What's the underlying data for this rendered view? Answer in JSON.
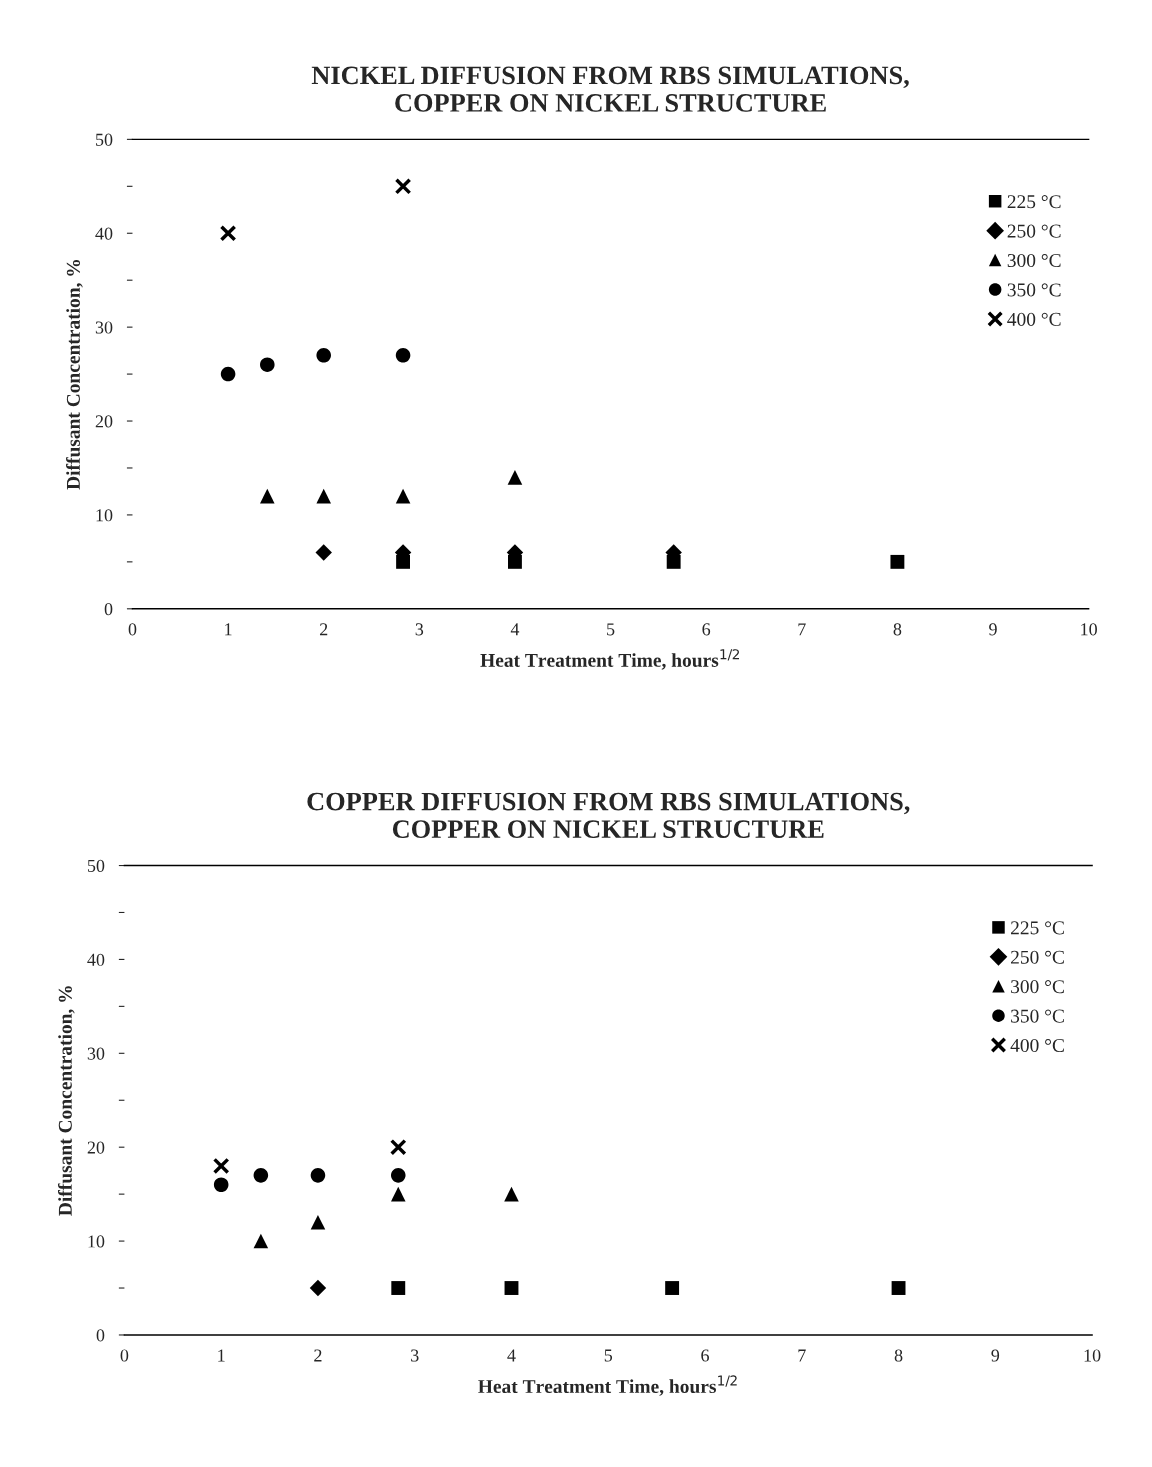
{
  "chart_data": [
    {
      "type": "scatter",
      "title": "NICKEL DIFFUSION FROM RBS SIMULATIONS,\nCOPPER ON NICKEL STRUCTURE",
      "xlabel": "Heat Treatment Time, hours$^{1/2}$",
      "ylabel": "Diffusant Concentration, %",
      "xlim": [
        0,
        10
      ],
      "xticks": [
        0,
        1,
        2,
        3,
        4,
        5,
        6,
        7,
        8,
        9,
        10
      ],
      "ylim": [
        0,
        50
      ],
      "yticks": [
        0,
        {
          "value": 5,
          "label": null
        },
        10,
        {
          "value": 15,
          "label": null
        },
        20,
        {
          "value": 25,
          "label": null
        },
        30,
        {
          "value": 35,
          "label": null
        },
        40,
        {
          "value": 45,
          "label": null
        },
        50
      ],
      "grid": false,
      "legend": "top right",
      "series": [
        {
          "name": "225 °C",
          "color": "#000000",
          "marker": "square",
          "x": [
            2.83,
            4,
            5.66,
            8
          ],
          "values": [
            5,
            5,
            5,
            5
          ]
        },
        {
          "name": "250 °C",
          "color": "#000000",
          "marker": "diamond",
          "x": [
            2,
            2.83,
            4,
            5.66
          ],
          "values": [
            6,
            6,
            6,
            6
          ]
        },
        {
          "name": "300 °C",
          "color": "#000000",
          "marker": "triangle",
          "x": [
            1.41,
            2,
            2.83,
            4
          ],
          "values": [
            12,
            12,
            12,
            14
          ]
        },
        {
          "name": "350 °C",
          "color": "#000000",
          "marker": "circle",
          "x": [
            1,
            1.41,
            2,
            2.83
          ],
          "values": [
            25,
            26,
            27,
            27
          ]
        },
        {
          "name": "400 °C",
          "color": "#000000",
          "marker": "cross",
          "x": [
            1,
            2.83
          ],
          "values": [
            40,
            45
          ]
        }
      ]
    },
    {
      "type": "scatter",
      "title": "COPPER DIFFUSION FROM RBS SIMULATIONS,\nCOPPER ON NICKEL STRUCTURE",
      "xlabel": "Heat Treatment Time, hours$^{1/2}$",
      "ylabel": "Diffusant Concentration, %",
      "xlim": [
        0,
        10
      ],
      "xticks": [
        0,
        1,
        2,
        3,
        4,
        5,
        6,
        7,
        8,
        9,
        10
      ],
      "ylim": [
        0,
        50
      ],
      "yticks": [
        0,
        {
          "value": 5,
          "label": null
        },
        10,
        {
          "value": 15,
          "label": null
        },
        20,
        {
          "value": 25,
          "label": null
        },
        30,
        {
          "value": 35,
          "label": null
        },
        40,
        {
          "value": 45,
          "label": null
        },
        50
      ],
      "grid": false,
      "legend": "top right",
      "series": [
        {
          "name": "225 °C",
          "color": "#000000",
          "marker": "square",
          "x": [
            2.83,
            4,
            5.66,
            8
          ],
          "values": [
            5,
            5,
            5,
            5
          ]
        },
        {
          "name": "250 °C",
          "color": "#000000",
          "marker": "diamond",
          "x": [
            2
          ],
          "values": [
            5
          ]
        },
        {
          "name": "300 °C",
          "color": "#000000",
          "marker": "triangle",
          "x": [
            1.41,
            2,
            2.83,
            4
          ],
          "values": [
            10,
            12,
            15,
            15
          ]
        },
        {
          "name": "350 °C",
          "color": "#000000",
          "marker": "circle",
          "x": [
            1,
            1.41,
            2,
            2.83
          ],
          "values": [
            16,
            17,
            17,
            17
          ]
        },
        {
          "name": "400 °C",
          "color": "#000000",
          "marker": "cross",
          "x": [
            1,
            2.83
          ],
          "values": [
            18,
            20
          ]
        }
      ]
    }
  ]
}
